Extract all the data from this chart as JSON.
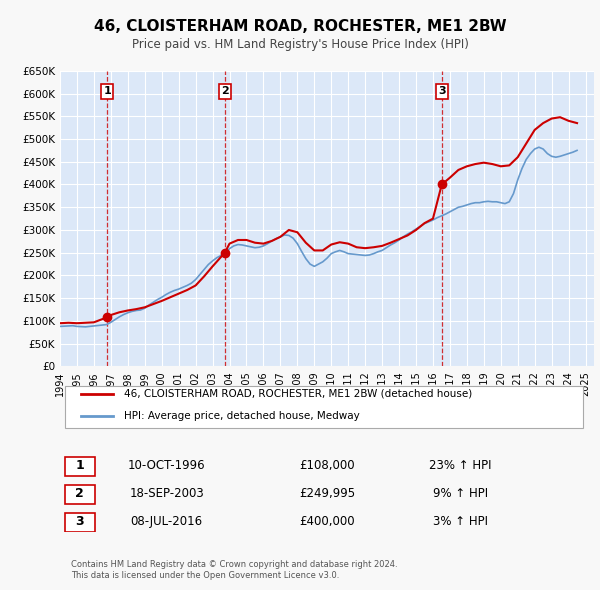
{
  "title": "46, CLOISTERHAM ROAD, ROCHESTER, ME1 2BW",
  "subtitle": "Price paid vs. HM Land Registry's House Price Index (HPI)",
  "xlabel": "",
  "ylabel": "",
  "background_color": "#f0f4ff",
  "plot_bg_color": "#dce8f8",
  "grid_color": "#ffffff",
  "ylim": [
    0,
    650000
  ],
  "yticks": [
    0,
    50000,
    100000,
    150000,
    200000,
    250000,
    300000,
    350000,
    400000,
    450000,
    500000,
    550000,
    600000,
    650000
  ],
  "ytick_labels": [
    "£0",
    "£50K",
    "£100K",
    "£150K",
    "£200K",
    "£250K",
    "£300K",
    "£350K",
    "£400K",
    "£450K",
    "£500K",
    "£550K",
    "£600K",
    "£650K"
  ],
  "xlim_start": 1994.0,
  "xlim_end": 2025.5,
  "xticks": [
    1994,
    1995,
    1996,
    1997,
    1998,
    1999,
    2000,
    2001,
    2002,
    2003,
    2004,
    2005,
    2006,
    2007,
    2008,
    2009,
    2010,
    2011,
    2012,
    2013,
    2014,
    2015,
    2016,
    2017,
    2018,
    2019,
    2020,
    2021,
    2022,
    2023,
    2024,
    2025
  ],
  "price_color": "#cc0000",
  "hpi_color": "#6699cc",
  "sale_marker_color": "#cc0000",
  "vline_color": "#cc0000",
  "sale_dates": [
    1996.78,
    2003.72,
    2016.52
  ],
  "sale_prices": [
    108000,
    249995,
    400000
  ],
  "sale_labels": [
    "1",
    "2",
    "3"
  ],
  "sale_date_strs": [
    "10-OCT-1996",
    "18-SEP-2003",
    "08-JUL-2016"
  ],
  "sale_price_strs": [
    "£108,000",
    "£249,995",
    "£400,000"
  ],
  "sale_hpi_strs": [
    "23% ↑ HPI",
    "9% ↑ HPI",
    "3% ↑ HPI"
  ],
  "legend_line1": "46, CLOISTERHAM ROAD, ROCHESTER, ME1 2BW (detached house)",
  "legend_line2": "HPI: Average price, detached house, Medway",
  "footer": "Contains HM Land Registry data © Crown copyright and database right 2024.\nThis data is licensed under the Open Government Licence v3.0.",
  "hpi_data": {
    "years": [
      1994.0,
      1994.25,
      1994.5,
      1994.75,
      1995.0,
      1995.25,
      1995.5,
      1995.75,
      1996.0,
      1996.25,
      1996.5,
      1996.75,
      1997.0,
      1997.25,
      1997.5,
      1997.75,
      1998.0,
      1998.25,
      1998.5,
      1998.75,
      1999.0,
      1999.25,
      1999.5,
      1999.75,
      2000.0,
      2000.25,
      2000.5,
      2000.75,
      2001.0,
      2001.25,
      2001.5,
      2001.75,
      2002.0,
      2002.25,
      2002.5,
      2002.75,
      2003.0,
      2003.25,
      2003.5,
      2003.75,
      2004.0,
      2004.25,
      2004.5,
      2004.75,
      2005.0,
      2005.25,
      2005.5,
      2005.75,
      2006.0,
      2006.25,
      2006.5,
      2006.75,
      2007.0,
      2007.25,
      2007.5,
      2007.75,
      2008.0,
      2008.25,
      2008.5,
      2008.75,
      2009.0,
      2009.25,
      2009.5,
      2009.75,
      2010.0,
      2010.25,
      2010.5,
      2010.75,
      2011.0,
      2011.25,
      2011.5,
      2011.75,
      2012.0,
      2012.25,
      2012.5,
      2012.75,
      2013.0,
      2013.25,
      2013.5,
      2013.75,
      2014.0,
      2014.25,
      2014.5,
      2014.75,
      2015.0,
      2015.25,
      2015.5,
      2015.75,
      2016.0,
      2016.25,
      2016.5,
      2016.75,
      2017.0,
      2017.25,
      2017.5,
      2017.75,
      2018.0,
      2018.25,
      2018.5,
      2018.75,
      2019.0,
      2019.25,
      2019.5,
      2019.75,
      2020.0,
      2020.25,
      2020.5,
      2020.75,
      2021.0,
      2021.25,
      2021.5,
      2021.75,
      2022.0,
      2022.25,
      2022.5,
      2022.75,
      2023.0,
      2023.25,
      2023.5,
      2023.75,
      2024.0,
      2024.25,
      2024.5
    ],
    "values": [
      88000,
      88500,
      89000,
      89500,
      88000,
      87500,
      87000,
      88000,
      89000,
      90000,
      91000,
      92000,
      97000,
      103000,
      109000,
      114000,
      118000,
      121000,
      123000,
      124000,
      128000,
      135000,
      141000,
      147000,
      152000,
      158000,
      163000,
      167000,
      170000,
      174000,
      178000,
      183000,
      191000,
      202000,
      213000,
      224000,
      232000,
      239000,
      244000,
      248000,
      259000,
      265000,
      268000,
      267000,
      265000,
      263000,
      261000,
      262000,
      265000,
      270000,
      276000,
      281000,
      285000,
      289000,
      288000,
      282000,
      270000,
      253000,
      237000,
      225000,
      220000,
      225000,
      230000,
      238000,
      248000,
      252000,
      255000,
      252000,
      248000,
      247000,
      246000,
      245000,
      244000,
      245000,
      248000,
      252000,
      255000,
      261000,
      267000,
      272000,
      278000,
      285000,
      291000,
      296000,
      302000,
      308000,
      314000,
      318000,
      322000,
      327000,
      331000,
      335000,
      340000,
      345000,
      350000,
      352000,
      355000,
      358000,
      360000,
      360000,
      362000,
      363000,
      362000,
      362000,
      360000,
      358000,
      362000,
      380000,
      410000,
      435000,
      455000,
      468000,
      478000,
      482000,
      478000,
      468000,
      462000,
      460000,
      462000,
      465000,
      468000,
      471000,
      475000
    ]
  },
  "price_data": {
    "years": [
      1994.0,
      1994.5,
      1995.0,
      1995.5,
      1996.0,
      1996.78,
      1997.0,
      1997.5,
      1998.0,
      1998.5,
      1999.0,
      1999.5,
      2000.0,
      2000.5,
      2001.0,
      2001.5,
      2002.0,
      2002.5,
      2003.0,
      2003.72,
      2004.0,
      2004.5,
      2005.0,
      2005.5,
      2006.0,
      2006.5,
      2007.0,
      2007.5,
      2008.0,
      2008.5,
      2009.0,
      2009.5,
      2010.0,
      2010.5,
      2011.0,
      2011.5,
      2012.0,
      2012.5,
      2013.0,
      2013.5,
      2014.0,
      2014.5,
      2015.0,
      2015.5,
      2016.0,
      2016.52,
      2017.0,
      2017.5,
      2018.0,
      2018.5,
      2019.0,
      2019.5,
      2020.0,
      2020.5,
      2021.0,
      2021.5,
      2022.0,
      2022.5,
      2023.0,
      2023.5,
      2024.0,
      2024.5
    ],
    "values": [
      95000,
      96000,
      95000,
      96000,
      97000,
      108000,
      113000,
      119000,
      123000,
      126000,
      130000,
      137000,
      144000,
      152000,
      160000,
      168000,
      178000,
      198000,
      220000,
      249995,
      270000,
      278000,
      278000,
      272000,
      270000,
      276000,
      285000,
      300000,
      295000,
      272000,
      255000,
      255000,
      268000,
      273000,
      270000,
      262000,
      260000,
      262000,
      265000,
      272000,
      280000,
      288000,
      300000,
      315000,
      325000,
      400000,
      415000,
      432000,
      440000,
      445000,
      448000,
      445000,
      440000,
      442000,
      460000,
      490000,
      520000,
      535000,
      545000,
      548000,
      540000,
      535000
    ]
  }
}
